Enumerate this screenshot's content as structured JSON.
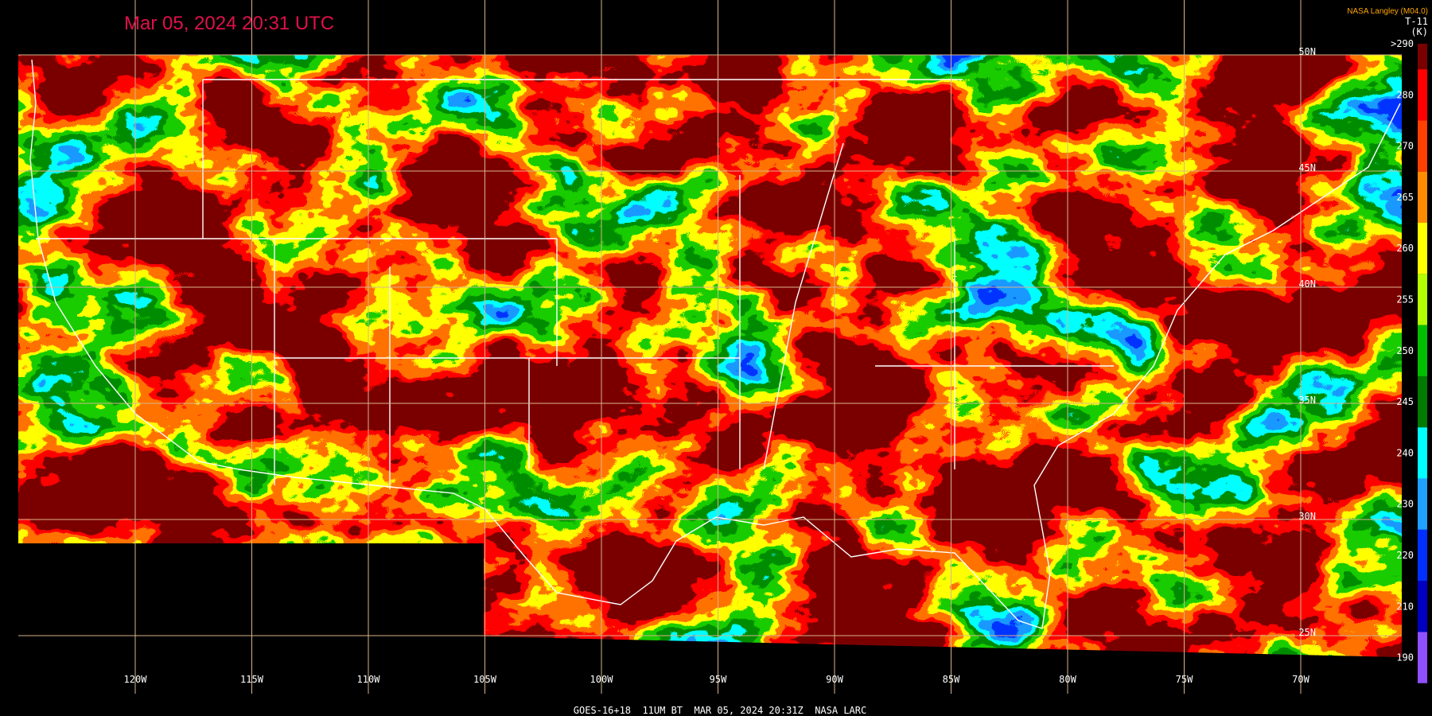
{
  "title": "Mar 05, 2024 20:31 UTC",
  "credit": "NASA Langley (M04.0)",
  "product": "T-11",
  "unit": "(K)",
  "colorbar": [
    {
      "label": ">290",
      "color": "#7a0000"
    },
    {
      "label": "280",
      "color": "#ff0000"
    },
    {
      "label": "270",
      "color": "#ff4000"
    },
    {
      "label": "265",
      "color": "#ff8c00"
    },
    {
      "label": "260",
      "color": "#ffff00"
    },
    {
      "label": "255",
      "color": "#b4ff00"
    },
    {
      "label": "250",
      "color": "#00c000"
    },
    {
      "label": "245",
      "color": "#007a00"
    },
    {
      "label": "240",
      "color": "#00ffff"
    },
    {
      "label": "230",
      "color": "#20a0ff"
    },
    {
      "label": "220",
      "color": "#0030ff"
    },
    {
      "label": "210",
      "color": "#0000c0"
    },
    {
      "label": "190",
      "color": "#9050ff"
    }
  ],
  "longitudes": [
    "120W",
    "115W",
    "110W",
    "105W",
    "100W",
    "95W",
    "90W",
    "85W",
    "80W",
    "75W",
    "70W"
  ],
  "latitudes": [
    "50N",
    "45N",
    "40N",
    "35N",
    "30N",
    "25N"
  ],
  "footer": "GOES-16+18  11UM BT  MAR 05, 2024 20:31Z  NASA LARC"
}
